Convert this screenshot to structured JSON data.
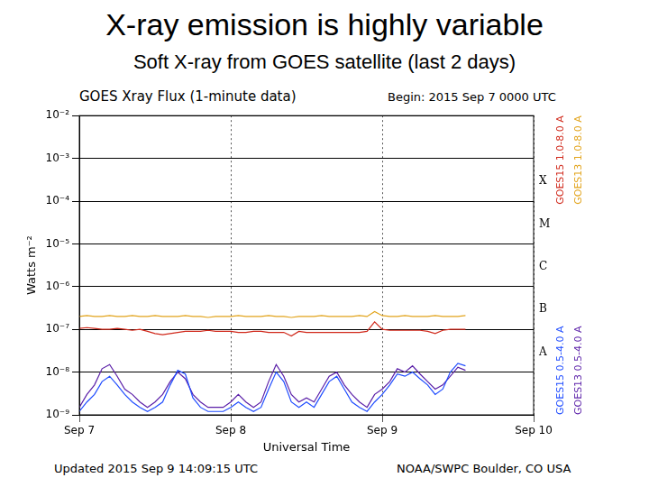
{
  "chart_data": {
    "type": "line",
    "slide_title": "X-ray emission is highly variable",
    "slide_subtitle": "Soft X-ray from GOES satellite (last 2 days)",
    "title": "GOES Xray Flux (1-minute data)",
    "annotations": {
      "begin": "Begin:  2015 Sep 7 0000 UTC",
      "updated": "Updated 2015 Sep  9 14:09:15 UTC",
      "credit": "NOAA/SWPC Boulder, CO USA"
    },
    "x_label": "Universal Time",
    "y_label": "Watts m⁻²",
    "log": "y",
    "grid": true,
    "legend": "right",
    "xlim": [
      0,
      3
    ],
    "xticks": [
      {
        "value": 0,
        "label": "Sep 7"
      },
      {
        "value": 1,
        "label": "Sep 8"
      },
      {
        "value": 2,
        "label": "Sep 9"
      },
      {
        "value": 3,
        "label": "Sep 10"
      }
    ],
    "ylim": [
      1e-09,
      0.01
    ],
    "yticks": [
      {
        "value": 1e-09,
        "label": "10⁻⁹"
      },
      {
        "value": 1e-08,
        "label": "10⁻⁸"
      },
      {
        "value": 1e-07,
        "label": "10⁻⁷"
      },
      {
        "value": 1e-06,
        "label": "10⁻⁶"
      },
      {
        "value": 1e-05,
        "label": "10⁻⁵"
      },
      {
        "value": 0.0001,
        "label": "10⁻⁴"
      },
      {
        "value": 0.001,
        "label": "10⁻³"
      },
      {
        "value": 0.01,
        "label": "10⁻²"
      }
    ],
    "flare_classes": [
      {
        "label": "X",
        "value": 0.0001
      },
      {
        "label": "M",
        "value": 1e-05
      },
      {
        "label": "C",
        "value": 1e-06
      },
      {
        "label": "B",
        "value": 1e-07
      },
      {
        "label": "A",
        "value": 1e-08
      }
    ],
    "x": [
      0,
      0.05,
      0.1,
      0.15,
      0.2,
      0.25,
      0.3,
      0.35,
      0.4,
      0.45,
      0.5,
      0.55,
      0.6,
      0.65,
      0.7,
      0.75,
      0.8,
      0.85,
      0.9,
      0.95,
      1,
      1.05,
      1.1,
      1.15,
      1.2,
      1.25,
      1.3,
      1.35,
      1.4,
      1.45,
      1.5,
      1.55,
      1.6,
      1.65,
      1.7,
      1.75,
      1.8,
      1.85,
      1.9,
      1.95,
      2,
      2.05,
      2.1,
      2.15,
      2.2,
      2.25,
      2.3,
      2.35,
      2.4,
      2.45,
      2.5,
      2.55
    ],
    "series": [
      {
        "name": "GOES15 1.0-8.0 A",
        "color": "#d0281a",
        "values": [
          1.05e-07,
          1.1e-07,
          1.05e-07,
          1e-07,
          1e-07,
          1.05e-07,
          1e-07,
          9.5e-08,
          1e-07,
          9e-08,
          8e-08,
          7.5e-08,
          8e-08,
          8.5e-08,
          9e-08,
          9e-08,
          9e-08,
          9.5e-08,
          9e-08,
          9e-08,
          9e-08,
          8.5e-08,
          8.5e-08,
          9e-08,
          9e-08,
          8.5e-08,
          8.5e-08,
          8.5e-08,
          7e-08,
          9e-08,
          8.5e-08,
          8.5e-08,
          8.5e-08,
          8.5e-08,
          8.5e-08,
          8.5e-08,
          8.5e-08,
          8.5e-08,
          9e-08,
          1.5e-07,
          1e-07,
          9.5e-08,
          9.5e-08,
          9.5e-08,
          9.5e-08,
          9.5e-08,
          9e-08,
          8e-08,
          9.5e-08,
          1e-07,
          1e-07,
          1e-07
        ]
      },
      {
        "name": "GOES13 1.0-8.0 A",
        "color": "#e2a41c",
        "values": [
          2e-07,
          2.1e-07,
          2e-07,
          2e-07,
          2.1e-07,
          2e-07,
          2e-07,
          2.1e-07,
          2e-07,
          2e-07,
          2.1e-07,
          2e-07,
          2e-07,
          2e-07,
          2.1e-07,
          2e-07,
          2e-07,
          1.9e-07,
          2e-07,
          2e-07,
          2e-07,
          2.1e-07,
          2e-07,
          2e-07,
          2e-07,
          2.1e-07,
          2e-07,
          2e-07,
          1.9e-07,
          2e-07,
          2e-07,
          2e-07,
          2.1e-07,
          2e-07,
          2e-07,
          2e-07,
          2e-07,
          2.1e-07,
          2e-07,
          2.6e-07,
          2.1e-07,
          2e-07,
          2e-07,
          2.1e-07,
          2e-07,
          2e-07,
          2e-07,
          2.1e-07,
          2e-07,
          2e-07,
          2e-07,
          2.1e-07
        ]
      },
      {
        "name": "GOES15 0.5-4.0 A",
        "color": "#1f4cff",
        "values": [
          1.2e-09,
          2e-09,
          3e-09,
          6e-09,
          8e-09,
          5e-09,
          3e-09,
          2e-09,
          1.5e-09,
          1.2e-09,
          1.5e-09,
          2e-09,
          5e-09,
          1.1e-08,
          9e-09,
          2.5e-09,
          1.5e-09,
          1.2e-09,
          1.2e-09,
          1.2e-09,
          1.5e-09,
          2e-09,
          1.5e-09,
          1.2e-09,
          1.5e-09,
          4e-09,
          1e-08,
          6e-09,
          2e-09,
          1.5e-09,
          2e-09,
          1.5e-09,
          3e-09,
          6e-09,
          8e-09,
          4e-09,
          2e-09,
          1.5e-09,
          1.2e-09,
          2e-09,
          3e-09,
          5e-09,
          9e-09,
          8e-09,
          1e-08,
          7e-09,
          5e-09,
          3e-09,
          4e-09,
          1e-08,
          1.6e-08,
          1.4e-08
        ]
      },
      {
        "name": "GOES13 0.5-4.0 A",
        "color": "#5a1fa8",
        "values": [
          1.5e-09,
          3e-09,
          5e-09,
          1.2e-08,
          1.5e-08,
          8e-09,
          4e-09,
          3e-09,
          2e-09,
          1.5e-09,
          2e-09,
          3e-09,
          6e-09,
          1e-08,
          7e-09,
          3e-09,
          2e-09,
          1.5e-09,
          1.5e-09,
          1.5e-09,
          2e-09,
          3e-09,
          2e-09,
          1.5e-09,
          2e-09,
          6e-09,
          1.5e-08,
          8e-09,
          3e-09,
          2e-09,
          2.5e-09,
          2e-09,
          4e-09,
          8e-09,
          1e-08,
          5e-09,
          3e-09,
          2e-09,
          1.5e-09,
          3e-09,
          4e-09,
          6e-09,
          1.2e-08,
          1e-08,
          1.4e-08,
          9e-09,
          6e-09,
          4e-09,
          5e-09,
          8e-09,
          1.3e-08,
          1.1e-08
        ]
      }
    ]
  }
}
